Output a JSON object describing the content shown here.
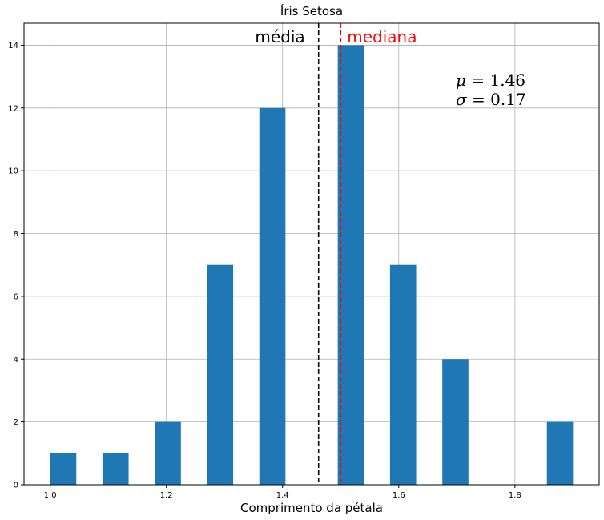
{
  "chart_data": {
    "type": "bar",
    "title": "Íris Setosa",
    "xlabel": "Comprimento da pétala",
    "ylabel": "",
    "xlim": [
      0.955,
      1.945
    ],
    "ylim": [
      0,
      14.7
    ],
    "bin_width": 0.045,
    "bins": [
      {
        "x": 1.0,
        "count": 1
      },
      {
        "x": 1.045,
        "count": 0
      },
      {
        "x": 1.09,
        "count": 1
      },
      {
        "x": 1.135,
        "count": 0
      },
      {
        "x": 1.18,
        "count": 2
      },
      {
        "x": 1.225,
        "count": 0
      },
      {
        "x": 1.27,
        "count": 7
      },
      {
        "x": 1.315,
        "count": 0
      },
      {
        "x": 1.36,
        "count": 12
      },
      {
        "x": 1.405,
        "count": 0
      },
      {
        "x": 1.45,
        "count": 0
      },
      {
        "x": 1.495,
        "count": 14
      },
      {
        "x": 1.54,
        "count": 0
      },
      {
        "x": 1.585,
        "count": 7
      },
      {
        "x": 1.63,
        "count": 0
      },
      {
        "x": 1.675,
        "count": 4
      },
      {
        "x": 1.72,
        "count": 0
      },
      {
        "x": 1.765,
        "count": 0
      },
      {
        "x": 1.81,
        "count": 0
      },
      {
        "x": 1.855,
        "count": 2
      }
    ],
    "x_ticks": [
      1.0,
      1.2,
      1.4,
      1.6,
      1.8
    ],
    "x_tick_labels": [
      "1.0",
      "1.2",
      "1.4",
      "1.6",
      "1.8"
    ],
    "y_ticks": [
      0,
      2,
      4,
      6,
      8,
      10,
      12,
      14
    ],
    "y_tick_labels": [
      "0",
      "2",
      "4",
      "6",
      "8",
      "10",
      "12",
      "14"
    ],
    "grid": true,
    "bar_color": "#1f77b4",
    "vlines": [
      {
        "x": 1.462,
        "label": "média",
        "color": "#000000",
        "style": "dashed"
      },
      {
        "x": 1.5,
        "label": "mediana",
        "color": "#ff0000",
        "style": "dashed"
      }
    ],
    "annotations": {
      "mean_symbol": "μ",
      "mean_value": "1.46",
      "std_symbol": "σ",
      "std_value": "0.17"
    }
  }
}
